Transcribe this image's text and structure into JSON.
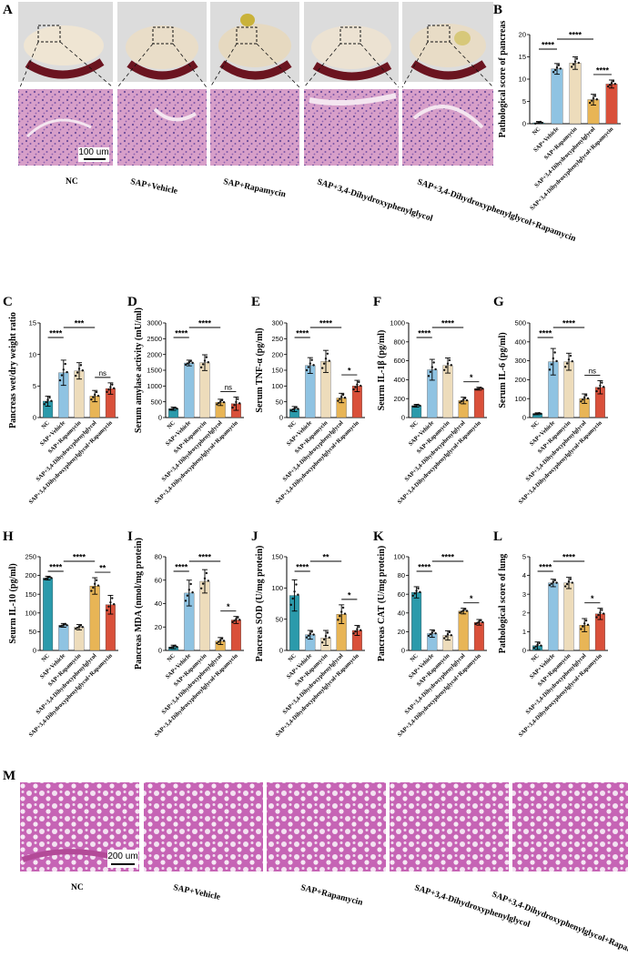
{
  "colors": [
    "#2b9aab",
    "#8fc3e2",
    "#eddcbb",
    "#e8b556",
    "#d9503a"
  ],
  "groups": [
    "NC",
    "SAP+Vehicle",
    "SAP+Rapamycin",
    "SAP+3,4-Dihydroxyphenylglycol",
    "SAP+3,4-Dihydroxyphenylglycol+Rapamycin"
  ],
  "panel_labels": {
    "A": "A",
    "B": "B",
    "C": "C",
    "D": "D",
    "E": "E",
    "F": "F",
    "G": "G",
    "H": "H",
    "I": "I",
    "J": "J",
    "K": "K",
    "L": "L",
    "M": "M"
  },
  "panel_a": {
    "scale_bar": "100 um"
  },
  "panel_m": {
    "scale_bar": "200 um"
  },
  "chart_data": [
    {
      "id": "B",
      "type": "bar",
      "ylabel": "Pathological score of pancreas",
      "ylim": [
        0,
        20
      ],
      "yticks": [
        "0",
        "5",
        "10",
        "15",
        "20"
      ],
      "values": [
        0.2,
        12.3,
        13.6,
        5.4,
        8.9
      ],
      "errors": [
        0.3,
        1.2,
        1.4,
        1.2,
        0.9
      ],
      "comparisons": [
        {
          "a": 0,
          "b": 1,
          "label": "****"
        },
        {
          "a": 1,
          "b": 3,
          "label": "****"
        },
        {
          "a": 3,
          "b": 4,
          "label": "****"
        }
      ]
    },
    {
      "id": "C",
      "type": "bar",
      "ylabel": "Pancreas wet/dry weight ratio",
      "ylim": [
        0,
        15
      ],
      "yticks": [
        "0",
        "5",
        "10",
        "15"
      ],
      "values": [
        2.6,
        7.1,
        7.4,
        3.4,
        4.6
      ],
      "errors": [
        0.8,
        2.0,
        1.3,
        0.9,
        0.9
      ],
      "comparisons": [
        {
          "a": 0,
          "b": 1,
          "label": "****"
        },
        {
          "a": 1,
          "b": 3,
          "label": "***"
        },
        {
          "a": 3,
          "b": 4,
          "label": "ns"
        }
      ]
    },
    {
      "id": "D",
      "type": "bar",
      "ylabel": "Serum amylase activity (mU/ml)",
      "ylim": [
        0,
        3000
      ],
      "yticks": [
        "0",
        "500",
        "1000",
        "1500",
        "2000",
        "2500",
        "3000"
      ],
      "values": [
        280,
        1730,
        1740,
        480,
        440
      ],
      "errors": [
        50,
        90,
        250,
        100,
        210
      ],
      "comparisons": [
        {
          "a": 0,
          "b": 1,
          "label": "****"
        },
        {
          "a": 1,
          "b": 3,
          "label": "****"
        },
        {
          "a": 3,
          "b": 4,
          "label": "ns"
        }
      ]
    },
    {
      "id": "E",
      "type": "bar",
      "ylabel": "Serum TNF-α (pg/ml)",
      "ylim": [
        0,
        300
      ],
      "yticks": [
        "0",
        "50",
        "100",
        "150",
        "200",
        "250",
        "300"
      ],
      "values": [
        27,
        165,
        178,
        62,
        100
      ],
      "errors": [
        8,
        25,
        35,
        15,
        18
      ],
      "comparisons": [
        {
          "a": 0,
          "b": 1,
          "label": "****"
        },
        {
          "a": 1,
          "b": 3,
          "label": "****"
        },
        {
          "a": 3,
          "b": 4,
          "label": "*"
        }
      ]
    },
    {
      "id": "F",
      "type": "bar",
      "ylabel": "Seurm IL-1β (pg/ml)",
      "ylim": [
        0,
        1000
      ],
      "yticks": [
        "0",
        "200",
        "400",
        "600",
        "800",
        "1000"
      ],
      "values": [
        125,
        505,
        550,
        180,
        305
      ],
      "errors": [
        15,
        110,
        80,
        35,
        15
      ],
      "comparisons": [
        {
          "a": 0,
          "b": 1,
          "label": "****"
        },
        {
          "a": 1,
          "b": 3,
          "label": "****"
        },
        {
          "a": 3,
          "b": 4,
          "label": "*"
        }
      ]
    },
    {
      "id": "G",
      "type": "bar",
      "ylabel": "Serum IL-6 (pg/ml)",
      "ylim": [
        0,
        500
      ],
      "yticks": [
        "0",
        "100",
        "200",
        "300",
        "400",
        "500"
      ],
      "values": [
        20,
        295,
        295,
        100,
        160
      ],
      "errors": [
        5,
        70,
        45,
        25,
        35
      ],
      "comparisons": [
        {
          "a": 0,
          "b": 1,
          "label": "****"
        },
        {
          "a": 1,
          "b": 3,
          "label": "****"
        },
        {
          "a": 3,
          "b": 4,
          "label": "ns"
        }
      ]
    },
    {
      "id": "H",
      "type": "bar",
      "ylabel": "Seurm IL-10 (pg/ml)",
      "ylim": [
        0,
        250
      ],
      "yticks": [
        "0",
        "50",
        "100",
        "150",
        "200",
        "250"
      ],
      "values": [
        193,
        67,
        62,
        172,
        122
      ],
      "errors": [
        5,
        5,
        7,
        22,
        25
      ],
      "comparisons": [
        {
          "a": 0,
          "b": 1,
          "label": "****"
        },
        {
          "a": 1,
          "b": 3,
          "label": "****"
        },
        {
          "a": 3,
          "b": 4,
          "label": "**"
        }
      ]
    },
    {
      "id": "I",
      "type": "bar",
      "ylabel": "Pancreas MDA (nmol/mg protein)",
      "ylim": [
        0,
        80
      ],
      "yticks": [
        "0",
        "20",
        "40",
        "60",
        "80"
      ],
      "values": [
        3,
        49,
        59,
        8,
        26
      ],
      "errors": [
        1.5,
        11,
        10,
        3,
        3
      ],
      "comparisons": [
        {
          "a": 0,
          "b": 1,
          "label": "****"
        },
        {
          "a": 1,
          "b": 3,
          "label": "****"
        },
        {
          "a": 3,
          "b": 4,
          "label": "*"
        }
      ]
    },
    {
      "id": "J",
      "type": "bar",
      "ylabel": "Pancreas SOD (U/mg protein)",
      "ylim": [
        0,
        150
      ],
      "yticks": [
        "0",
        "50",
        "100",
        "150"
      ],
      "values": [
        88,
        25,
        20,
        58,
        32
      ],
      "errors": [
        25,
        7,
        12,
        15,
        8
      ],
      "comparisons": [
        {
          "a": 0,
          "b": 1,
          "label": "****"
        },
        {
          "a": 1,
          "b": 3,
          "label": "**"
        },
        {
          "a": 3,
          "b": 4,
          "label": "*"
        }
      ]
    },
    {
      "id": "K",
      "type": "bar",
      "ylabel": "Pancreas CAT (U/mg protein)",
      "ylim": [
        0,
        100
      ],
      "yticks": [
        "0",
        "20",
        "40",
        "60",
        "80",
        "100"
      ],
      "values": [
        62,
        18,
        16,
        42,
        30
      ],
      "errors": [
        6,
        4,
        5,
        3,
        3
      ],
      "comparisons": [
        {
          "a": 0,
          "b": 1,
          "label": "****"
        },
        {
          "a": 1,
          "b": 3,
          "label": "****"
        },
        {
          "a": 3,
          "b": 4,
          "label": "*"
        }
      ]
    },
    {
      "id": "L",
      "type": "bar",
      "ylabel": "Pathological score of lung",
      "ylim": [
        0,
        5
      ],
      "yticks": [
        "0",
        "1",
        "2",
        "3",
        "4",
        "5"
      ],
      "values": [
        0.25,
        3.6,
        3.6,
        1.35,
        1.95
      ],
      "errors": [
        0.2,
        0.2,
        0.3,
        0.35,
        0.3
      ],
      "comparisons": [
        {
          "a": 0,
          "b": 1,
          "label": "****"
        },
        {
          "a": 1,
          "b": 3,
          "label": "****"
        },
        {
          "a": 3,
          "b": 4,
          "label": "*"
        }
      ]
    }
  ]
}
